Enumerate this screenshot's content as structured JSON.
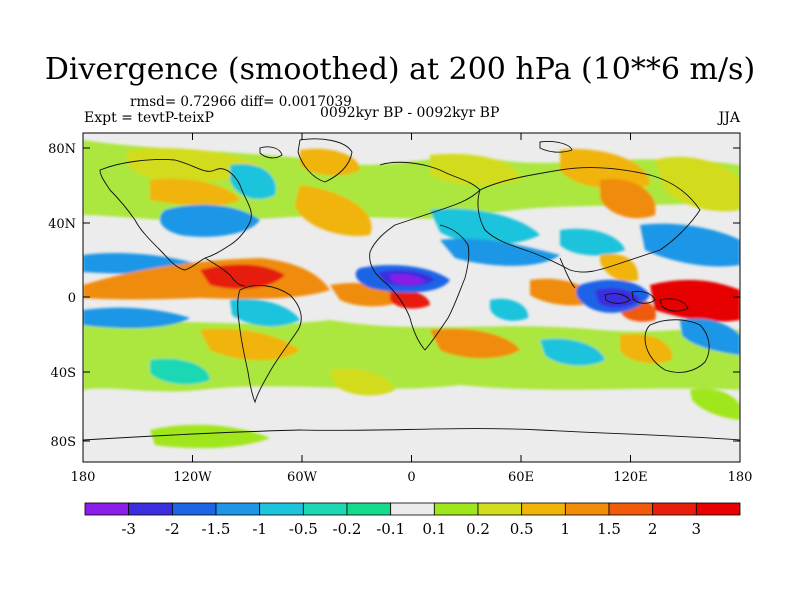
{
  "title": "Divergence (smoothed) at 200 hPa (10**6 m/s)",
  "stats": "rmsd= 0.72966 diff= 0.0017039",
  "experiment": "Expt = tevtP-teixP",
  "period": "0092kyr BP - 0092kyr BP",
  "season": "JJA",
  "axes": {
    "lat_labels": [
      "80N",
      "40N",
      "0",
      "40S",
      "80S"
    ],
    "lon_labels": [
      "180",
      "120W",
      "60W",
      "0",
      "60E",
      "120E",
      "180"
    ]
  },
  "colorbar": {
    "labels": [
      "-3",
      "-2",
      "-1.5",
      "-1",
      "-0.5",
      "-0.2",
      "-0.1",
      "0.1",
      "0.2",
      "0.5",
      "1",
      "1.5",
      "2",
      "3"
    ],
    "colors": [
      "#8a1ee8",
      "#3b2ee0",
      "#1e64e6",
      "#1e96e6",
      "#1ec3dc",
      "#1ed7b4",
      "#14dc8c",
      "#ececec",
      "#a0e61e",
      "#d2dc1e",
      "#f0b40a",
      "#f08c0a",
      "#f05a0a",
      "#e61e0a",
      "#e60000"
    ]
  }
}
